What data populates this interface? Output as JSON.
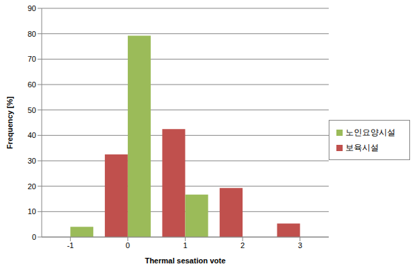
{
  "chart_data": {
    "type": "bar",
    "x_label": "Thermal sesation vote",
    "y_label": "Frequency [%]",
    "categories": [
      "-1",
      "0",
      "1",
      "2",
      "3"
    ],
    "series": [
      {
        "name": "보육시설",
        "color": "#c0504d",
        "values": [
          0,
          32.5,
          42.5,
          19.3,
          5.3
        ]
      },
      {
        "name": "노인요양시설",
        "color": "#9bbb59",
        "values": [
          4.0,
          79.2,
          16.7,
          0,
          0
        ]
      }
    ],
    "ylim": [
      0,
      90
    ],
    "yticks": [
      0,
      10,
      20,
      30,
      40,
      50,
      60,
      70,
      80,
      90
    ],
    "grid": true,
    "legend": "right"
  }
}
